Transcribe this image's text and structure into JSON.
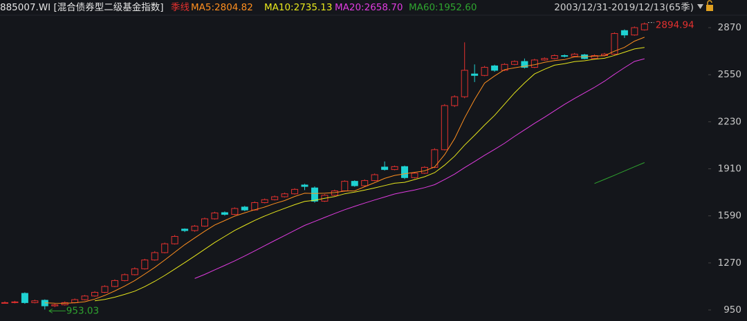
{
  "chart_data": {
    "type": "candlestick",
    "title": "885007.WI [混合债券型二级基金指数]",
    "period": "季线",
    "range_label": "2003/12/31-2019/12/13(65季)",
    "up_color": "#e5312f",
    "down_color": "#1fd2d2",
    "open": [
      1000,
      1000,
      1063,
      1000,
      1016,
      978,
      985,
      1000,
      1020,
      1045,
      1070,
      1110,
      1150,
      1190,
      1230,
      1290,
      1340,
      1400,
      1500,
      1490,
      1520,
      1570,
      1612,
      1600,
      1650,
      1630,
      1680,
      1700,
      1720,
      1740,
      1800,
      1780,
      1690,
      1730,
      1760,
      1825,
      1795,
      1830,
      1922,
      1905,
      1925,
      1850,
      1880,
      1920,
      2040,
      2340,
      2400,
      2555,
      2545,
      2610,
      2580,
      2620,
      2640,
      2600,
      2650,
      2660,
      2680,
      2675,
      2685,
      2660,
      2680,
      2690,
      2850,
      2820,
      2855
    ],
    "high": [
      1008,
      1012,
      1070,
      1020,
      1022,
      992,
      1008,
      1028,
      1052,
      1078,
      1118,
      1158,
      1198,
      1240,
      1298,
      1350,
      1408,
      1460,
      1505,
      1528,
      1578,
      1618,
      1620,
      1648,
      1658,
      1688,
      1708,
      1728,
      1748,
      1778,
      1808,
      1790,
      1738,
      1768,
      1832,
      1832,
      1838,
      1878,
      1960,
      1932,
      1932,
      1888,
      1928,
      2050,
      2350,
      2410,
      2770,
      2620,
      2610,
      2618,
      2628,
      2648,
      2660,
      2658,
      2668,
      2688,
      2688,
      2698,
      2692,
      2688,
      2698,
      2838,
      2858,
      2878,
      2905
    ],
    "low": [
      995,
      995,
      992,
      995,
      953.03,
      970,
      980,
      995,
      1015,
      1040,
      1065,
      1105,
      1145,
      1185,
      1225,
      1285,
      1335,
      1395,
      1480,
      1482,
      1515,
      1565,
      1592,
      1595,
      1622,
      1625,
      1675,
      1695,
      1715,
      1735,
      1765,
      1680,
      1685,
      1725,
      1755,
      1788,
      1790,
      1825,
      1898,
      1900,
      1840,
      1845,
      1875,
      1915,
      2035,
      2330,
      2390,
      2500,
      2540,
      2570,
      2575,
      2615,
      2592,
      2595,
      2645,
      2655,
      2668,
      2670,
      2655,
      2655,
      2675,
      2685,
      2800,
      2815,
      2850
    ],
    "close": [
      1000,
      1005,
      1000,
      1012,
      978,
      985,
      1000,
      1020,
      1045,
      1070,
      1110,
      1150,
      1190,
      1230,
      1290,
      1340,
      1400,
      1450,
      1490,
      1520,
      1570,
      1610,
      1600,
      1640,
      1630,
      1680,
      1700,
      1720,
      1740,
      1770,
      1790,
      1690,
      1730,
      1760,
      1825,
      1795,
      1830,
      1870,
      1905,
      1925,
      1850,
      1880,
      1920,
      2040,
      2340,
      2400,
      2580,
      2545,
      2600,
      2580,
      2620,
      2640,
      2600,
      2650,
      2660,
      2680,
      2675,
      2690,
      2660,
      2680,
      2690,
      2830,
      2820,
      2870,
      2894.94
    ],
    "series": [
      {
        "name": "MA5",
        "label": "MA5:2804.82",
        "color": "#ff8f1f",
        "values": [
          null,
          null,
          null,
          null,
          999,
          996,
          995,
          999,
          1006,
          1024,
          1049,
          1079,
          1113,
          1150,
          1194,
          1240,
          1290,
          1342,
          1394,
          1440,
          1486,
          1528,
          1558,
          1588,
          1610,
          1632,
          1650,
          1674,
          1694,
          1722,
          1744,
          1742,
          1744,
          1748,
          1759,
          1760,
          1788,
          1816,
          1845,
          1865,
          1876,
          1886,
          1896,
          1923,
          2006,
          2116,
          2256,
          2381,
          2493,
          2541,
          2585,
          2597,
          2608,
          2618,
          2634,
          2646,
          2653,
          2671,
          2673,
          2677,
          2679,
          2710,
          2736,
          2778,
          2804.82
        ]
      },
      {
        "name": "MA10",
        "label": "MA10:2735.13",
        "color": "#e8e81c",
        "values": [
          null,
          null,
          null,
          null,
          null,
          null,
          null,
          null,
          null,
          1012,
          1022,
          1037,
          1056,
          1078,
          1109,
          1145,
          1185,
          1228,
          1272,
          1317,
          1363,
          1409,
          1450,
          1491,
          1525,
          1559,
          1589,
          1616,
          1641,
          1666,
          1688,
          1696,
          1709,
          1721,
          1740,
          1752,
          1765,
          1780,
          1796,
          1812,
          1818,
          1837,
          1856,
          1884,
          1935,
          1996,
          2071,
          2138,
          2208,
          2273,
          2350,
          2426,
          2494,
          2555,
          2587,
          2615,
          2625,
          2639,
          2645,
          2655,
          2662,
          2681,
          2703,
          2725,
          2735.13
        ]
      },
      {
        "name": "MA20",
        "label": "MA20:2658.70",
        "color": "#e03ce0",
        "values": [
          null,
          null,
          null,
          null,
          null,
          null,
          null,
          null,
          null,
          null,
          null,
          null,
          null,
          null,
          null,
          null,
          null,
          null,
          null,
          1164,
          1192,
          1223,
          1253,
          1284,
          1317,
          1352,
          1387,
          1422,
          1456,
          1491,
          1525,
          1552,
          1579,
          1606,
          1632,
          1655,
          1677,
          1698,
          1718,
          1739,
          1753,
          1766,
          1782,
          1802,
          1837,
          1874,
          1918,
          1959,
          2002,
          2042,
          2084,
          2131,
          2175,
          2219,
          2261,
          2305,
          2348,
          2388,
          2426,
          2464,
          2506,
          2553,
          2598,
          2640,
          2658.7
        ]
      },
      {
        "name": "MA60",
        "label": "MA60:1952.60",
        "color": "#2fa52f",
        "values": [
          null,
          null,
          null,
          null,
          null,
          null,
          null,
          null,
          null,
          null,
          null,
          null,
          null,
          null,
          null,
          null,
          null,
          null,
          null,
          null,
          null,
          null,
          null,
          null,
          null,
          null,
          null,
          null,
          null,
          null,
          null,
          null,
          null,
          null,
          null,
          null,
          null,
          null,
          null,
          null,
          null,
          null,
          null,
          null,
          null,
          null,
          null,
          null,
          null,
          null,
          null,
          null,
          null,
          null,
          null,
          null,
          null,
          null,
          null,
          1810,
          1838,
          1866,
          1895,
          1924,
          1952.6
        ]
      }
    ],
    "ylim": [
      875,
      3058
    ],
    "yticks": [
      950,
      1270,
      1590,
      1910,
      2230,
      2550,
      2870
    ]
  }
}
